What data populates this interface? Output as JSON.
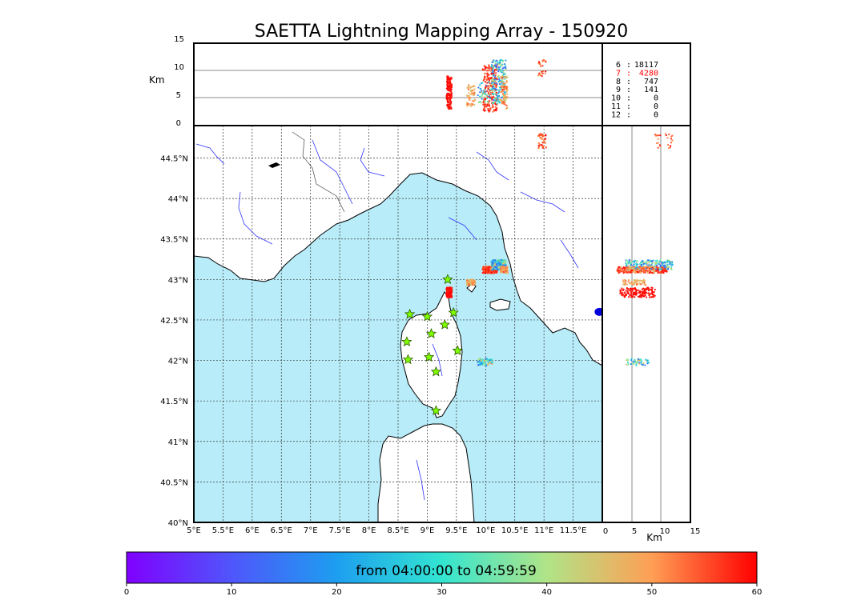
{
  "chart_data": {
    "type": "scatter",
    "title": "SAETTA Lightning Mapping Array - 150920",
    "time_range_label": "from 04:00:00 to 04:59:59",
    "colorbar": {
      "ticks": [
        0,
        10,
        20,
        30,
        40,
        50,
        60
      ],
      "range": [
        0,
        60
      ],
      "colormap": "rainbow"
    },
    "map": {
      "lon_range": [
        5,
        12
      ],
      "lat_range": [
        40,
        44.9
      ],
      "lon_ticks": [
        "5°E",
        "5.5°E",
        "6°E",
        "6.5°E",
        "7°E",
        "7.5°E",
        "8°E",
        "8.5°E",
        "9°E",
        "9.5°E",
        "10°E",
        "10.5°E",
        "11°E",
        "11.5°E"
      ],
      "lat_ticks": [
        "40°N",
        "40.5°N",
        "41°N",
        "41.5°N",
        "42°N",
        "42.5°N",
        "43°N",
        "43.5°N",
        "44°N",
        "44.5°N"
      ],
      "sea_color": "#b8ecf8",
      "land_color": "#ffffff",
      "river_color": "#3333ff"
    },
    "alt_lon_panel": {
      "ylabel": "Km",
      "yticks": [
        "0",
        "5",
        "10",
        "15"
      ],
      "ylim": [
        0,
        15
      ]
    },
    "lat_alt_panel": {
      "xlabel": "Km",
      "xticks": [
        "0",
        "5",
        "10",
        "15"
      ],
      "xlim": [
        0,
        15
      ]
    },
    "station_counts": [
      {
        "stations": "6",
        "count": "18117",
        "color": "#000000"
      },
      {
        "stations": "7",
        "count": "4280",
        "color": "#ff0000"
      },
      {
        "stations": "8",
        "count": "747",
        "color": "#000000"
      },
      {
        "stations": "9",
        "count": "141",
        "color": "#000000"
      },
      {
        "stations": "10",
        "count": "0",
        "color": "#000000"
      },
      {
        "stations": "11",
        "count": "0",
        "color": "#000000"
      },
      {
        "stations": "12",
        "count": "0",
        "color": "#000000"
      }
    ],
    "stations": [
      {
        "lon": 9.35,
        "lat": 43.0
      },
      {
        "lon": 8.7,
        "lat": 42.57
      },
      {
        "lon": 9.0,
        "lat": 42.54
      },
      {
        "lon": 9.45,
        "lat": 42.59
      },
      {
        "lon": 9.3,
        "lat": 42.44
      },
      {
        "lon": 9.07,
        "lat": 42.33
      },
      {
        "lon": 8.65,
        "lat": 42.23
      },
      {
        "lon": 9.52,
        "lat": 42.12
      },
      {
        "lon": 8.67,
        "lat": 42.01
      },
      {
        "lon": 9.03,
        "lat": 42.04
      },
      {
        "lon": 9.15,
        "lat": 41.86
      },
      {
        "lon": 9.15,
        "lat": 41.38
      }
    ],
    "clusters": [
      {
        "lon_min": 9.33,
        "lon_max": 9.42,
        "lat_min": 42.78,
        "lat_max": 42.9,
        "alt_min": 3.0,
        "alt_max": 9.0,
        "t_min": 58,
        "t_max": 60,
        "n": 160
      },
      {
        "lon_min": 9.68,
        "lon_max": 9.82,
        "lat_min": 42.93,
        "lat_max": 43.0,
        "alt_min": 3.5,
        "alt_max": 7.5,
        "t_min": 44,
        "t_min2": 0,
        "t_max": 55,
        "n": 60
      },
      {
        "lon_min": 9.95,
        "lon_max": 10.2,
        "lat_min": 43.08,
        "lat_max": 43.16,
        "alt_min": 2.5,
        "alt_max": 11.0,
        "t_min": 54,
        "t_max": 60,
        "n": 220
      },
      {
        "lon_min": 10.1,
        "lon_max": 10.35,
        "lat_min": 43.12,
        "lat_max": 43.24,
        "alt_min": 4.0,
        "alt_max": 12.0,
        "t_min": 10,
        "t_max": 45,
        "n": 200
      },
      {
        "lon_min": 10.26,
        "lon_max": 10.38,
        "lat_min": 43.08,
        "lat_max": 43.16,
        "alt_min": 3.0,
        "alt_max": 9.0,
        "t_min": 44,
        "t_max": 56,
        "n": 70
      },
      {
        "lon_min": 9.86,
        "lon_max": 10.12,
        "lat_min": 41.94,
        "lat_max": 42.02,
        "alt_min": 4.0,
        "alt_max": 8.0,
        "t_min": 14,
        "t_max": 48,
        "n": 50
      },
      {
        "lon_min": 10.9,
        "lon_max": 11.05,
        "lat_min": 44.62,
        "lat_max": 44.8,
        "alt_min": 9.0,
        "alt_max": 12.0,
        "t_min": 50,
        "t_max": 60,
        "n": 25
      }
    ],
    "blob": {
      "lon": 11.95,
      "lat": 42.6,
      "color": "#0000dd"
    }
  }
}
